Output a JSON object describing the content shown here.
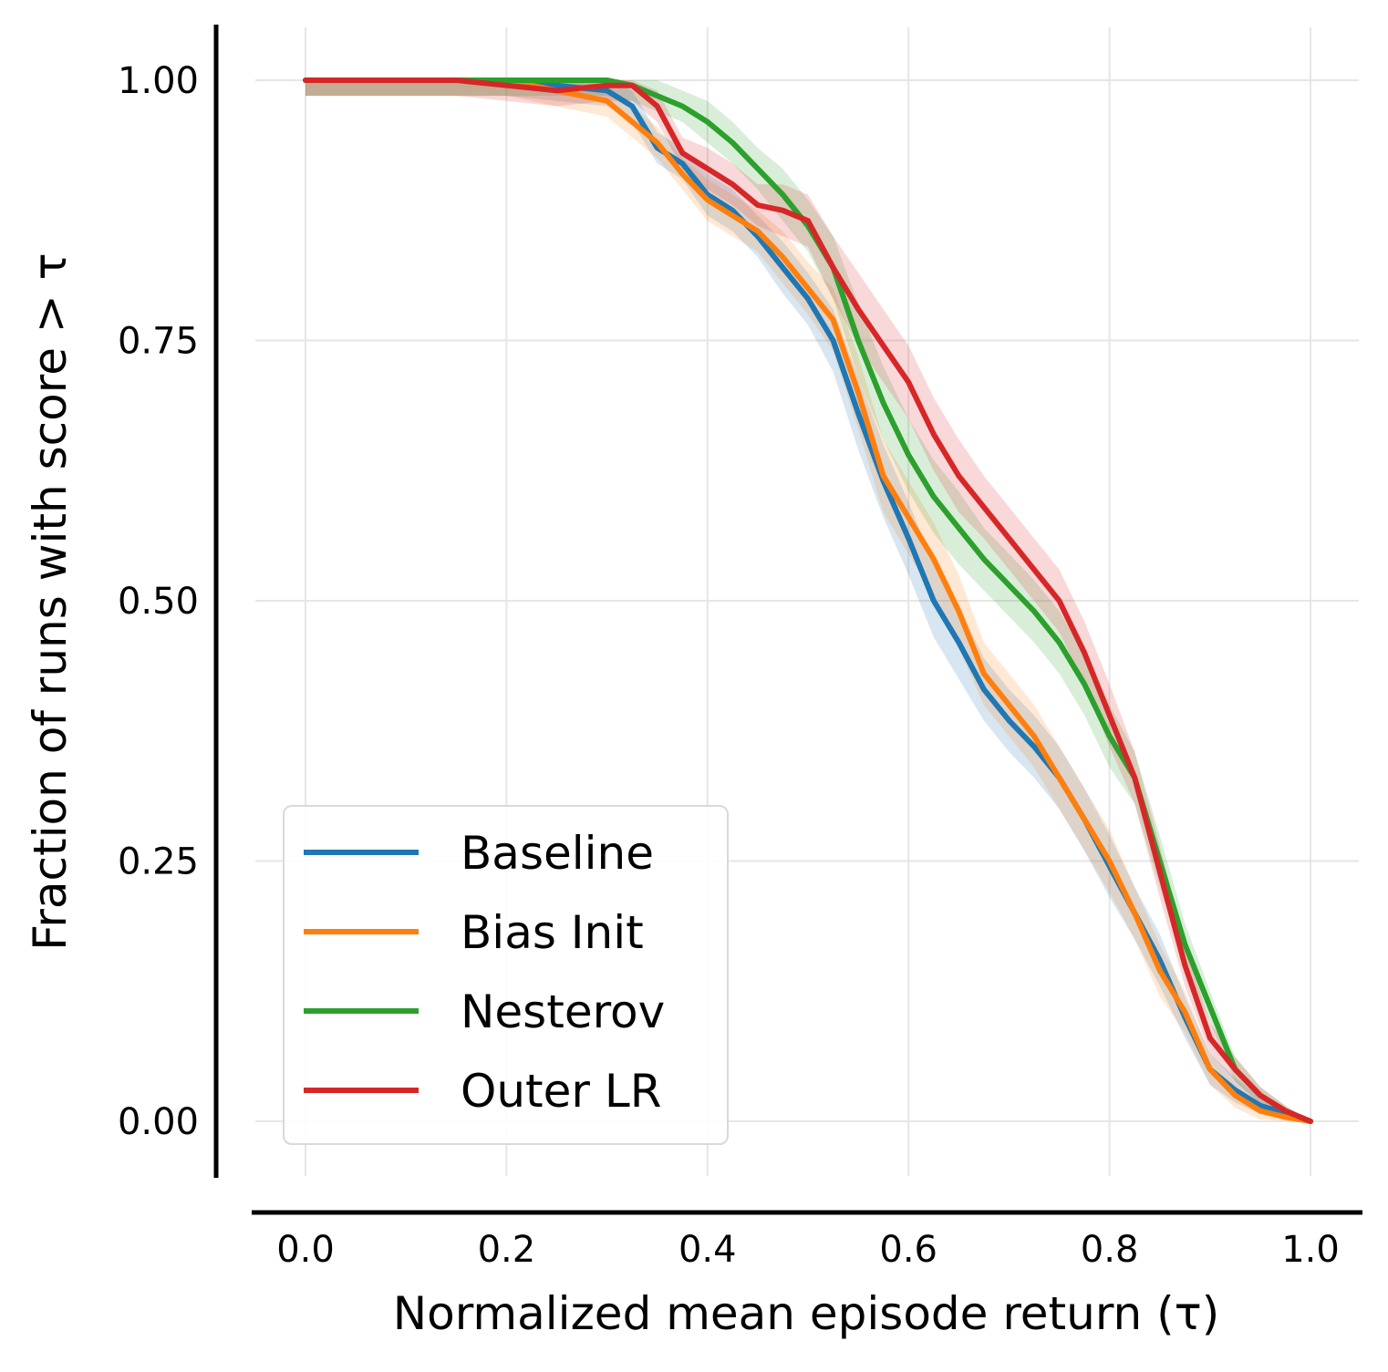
{
  "chart_data": {
    "type": "line",
    "xlabel": "Normalized mean episode return (τ)",
    "ylabel": "Fraction of runs with score  > τ",
    "xlim": [
      -0.05,
      1.05
    ],
    "ylim": [
      -0.05,
      1.05
    ],
    "grid": true,
    "legend_position": "lower-left",
    "x_ticks": [
      {
        "value": 0.0,
        "label": "0.0"
      },
      {
        "value": 0.2,
        "label": "0.2"
      },
      {
        "value": 0.4,
        "label": "0.4"
      },
      {
        "value": 0.6,
        "label": "0.6"
      },
      {
        "value": 0.8,
        "label": "0.8"
      },
      {
        "value": 1.0,
        "label": "1.0"
      }
    ],
    "y_ticks": [
      {
        "value": 0.0,
        "label": "0.00"
      },
      {
        "value": 0.25,
        "label": "0.25"
      },
      {
        "value": 0.5,
        "label": "0.50"
      },
      {
        "value": 0.75,
        "label": "0.75"
      },
      {
        "value": 1.0,
        "label": "1.00"
      }
    ],
    "x": [
      0.0,
      0.05,
      0.1,
      0.15,
      0.2,
      0.25,
      0.3,
      0.325,
      0.35,
      0.375,
      0.4,
      0.425,
      0.45,
      0.475,
      0.5,
      0.525,
      0.55,
      0.575,
      0.6,
      0.625,
      0.65,
      0.675,
      0.7,
      0.725,
      0.75,
      0.775,
      0.8,
      0.825,
      0.85,
      0.875,
      0.9,
      0.925,
      0.95,
      0.975,
      1.0
    ],
    "series": [
      {
        "name": "Baseline",
        "color": "#1f77b4",
        "values": [
          1.0,
          1.0,
          1.0,
          1.0,
          1.0,
          0.995,
          0.99,
          0.975,
          0.935,
          0.92,
          0.89,
          0.875,
          0.85,
          0.82,
          0.79,
          0.75,
          0.68,
          0.615,
          0.56,
          0.5,
          0.46,
          0.415,
          0.385,
          0.36,
          0.33,
          0.29,
          0.245,
          0.2,
          0.155,
          0.1,
          0.05,
          0.03,
          0.015,
          0.008,
          0.0
        ],
        "band": [
          0.015,
          0.015,
          0.015,
          0.015,
          0.015,
          0.015,
          0.015,
          0.015,
          0.015,
          0.015,
          0.02,
          0.02,
          0.02,
          0.025,
          0.025,
          0.03,
          0.035,
          0.035,
          0.035,
          0.035,
          0.035,
          0.03,
          0.03,
          0.03,
          0.03,
          0.03,
          0.03,
          0.025,
          0.025,
          0.02,
          0.015,
          0.012,
          0.008,
          0.005,
          0.0
        ]
      },
      {
        "name": "Bias Init",
        "color": "#ff7f0e",
        "values": [
          1.0,
          1.0,
          1.0,
          1.0,
          1.0,
          0.99,
          0.98,
          0.96,
          0.94,
          0.91,
          0.885,
          0.87,
          0.855,
          0.83,
          0.8,
          0.77,
          0.7,
          0.62,
          0.58,
          0.54,
          0.49,
          0.43,
          0.4,
          0.37,
          0.33,
          0.29,
          0.25,
          0.2,
          0.145,
          0.105,
          0.05,
          0.025,
          0.01,
          0.004,
          0.0
        ],
        "band": [
          0.015,
          0.015,
          0.015,
          0.015,
          0.015,
          0.015,
          0.015,
          0.015,
          0.015,
          0.015,
          0.02,
          0.02,
          0.02,
          0.025,
          0.025,
          0.03,
          0.035,
          0.035,
          0.035,
          0.035,
          0.035,
          0.03,
          0.03,
          0.03,
          0.03,
          0.03,
          0.03,
          0.025,
          0.025,
          0.02,
          0.015,
          0.012,
          0.008,
          0.005,
          0.0
        ]
      },
      {
        "name": "Nesterov",
        "color": "#2ca02c",
        "values": [
          1.0,
          1.0,
          1.0,
          1.0,
          1.0,
          1.0,
          1.0,
          0.995,
          0.985,
          0.975,
          0.96,
          0.94,
          0.915,
          0.89,
          0.86,
          0.82,
          0.75,
          0.69,
          0.64,
          0.6,
          0.57,
          0.54,
          0.515,
          0.49,
          0.46,
          0.42,
          0.37,
          0.33,
          0.25,
          0.17,
          0.11,
          0.05,
          0.025,
          0.01,
          0.0
        ],
        "band": [
          0.015,
          0.015,
          0.015,
          0.015,
          0.015,
          0.015,
          0.015,
          0.015,
          0.015,
          0.015,
          0.02,
          0.02,
          0.02,
          0.025,
          0.025,
          0.03,
          0.035,
          0.035,
          0.035,
          0.035,
          0.035,
          0.03,
          0.03,
          0.03,
          0.03,
          0.03,
          0.03,
          0.025,
          0.025,
          0.02,
          0.015,
          0.012,
          0.008,
          0.005,
          0.0
        ]
      },
      {
        "name": "Outer LR",
        "color": "#d62728",
        "values": [
          1.0,
          1.0,
          1.0,
          1.0,
          0.995,
          0.99,
          0.995,
          0.995,
          0.975,
          0.93,
          0.915,
          0.9,
          0.88,
          0.875,
          0.865,
          0.82,
          0.78,
          0.745,
          0.71,
          0.66,
          0.62,
          0.59,
          0.56,
          0.53,
          0.5,
          0.45,
          0.39,
          0.33,
          0.24,
          0.15,
          0.08,
          0.05,
          0.025,
          0.01,
          0.0
        ],
        "band": [
          0.015,
          0.015,
          0.015,
          0.015,
          0.015,
          0.015,
          0.015,
          0.015,
          0.015,
          0.015,
          0.02,
          0.02,
          0.02,
          0.025,
          0.025,
          0.03,
          0.035,
          0.035,
          0.035,
          0.035,
          0.035,
          0.03,
          0.03,
          0.03,
          0.03,
          0.03,
          0.03,
          0.025,
          0.025,
          0.02,
          0.015,
          0.012,
          0.008,
          0.005,
          0.0
        ]
      }
    ]
  }
}
